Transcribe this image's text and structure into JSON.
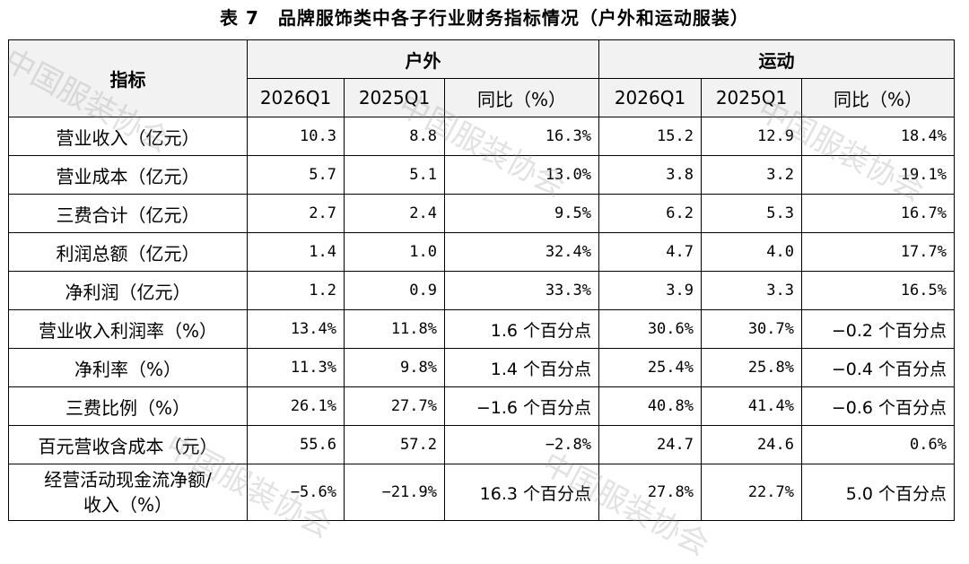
{
  "title": "表 7　品牌服饰类中各子行业财务指标情况（户外和运动服装）",
  "header": {
    "indicator": "指标",
    "groups": [
      "户外",
      "运动"
    ],
    "subcols": [
      "2026Q1",
      "2025Q1",
      "同比（%）",
      "2026Q1",
      "2025Q1",
      "同比（%）"
    ]
  },
  "rows": [
    {
      "label": "营业收入（亿元）",
      "cells": [
        "10.3",
        "8.8",
        "16.3%",
        "15.2",
        "12.9",
        "18.4%"
      ]
    },
    {
      "label": "营业成本（亿元）",
      "cells": [
        "5.7",
        "5.1",
        "13.0%",
        "3.8",
        "3.2",
        "19.1%"
      ]
    },
    {
      "label": "三费合计（亿元）",
      "cells": [
        "2.7",
        "2.4",
        "9.5%",
        "6.2",
        "5.3",
        "16.7%"
      ]
    },
    {
      "label": "利润总额（亿元）",
      "cells": [
        "1.4",
        "1.0",
        "32.4%",
        "4.7",
        "4.0",
        "17.7%"
      ]
    },
    {
      "label": "净利润（亿元）",
      "cells": [
        "1.2",
        "0.9",
        "33.3%",
        "3.9",
        "3.3",
        "16.5%"
      ]
    },
    {
      "label": "营业收入利润率（%）",
      "cells": [
        "13.4%",
        "11.8%",
        "1.6 个百分点",
        "30.6%",
        "30.7%",
        "−0.2 个百分点"
      ]
    },
    {
      "label": "净利率（%）",
      "cells": [
        "11.3%",
        "9.8%",
        "1.4 个百分点",
        "25.4%",
        "25.8%",
        "−0.4 个百分点"
      ]
    },
    {
      "label": "三费比例（%）",
      "cells": [
        "26.1%",
        "27.7%",
        "−1.6 个百分点",
        "40.8%",
        "41.4%",
        "−0.6 个百分点"
      ]
    },
    {
      "label": "百元营收含成本（元）",
      "cells": [
        "55.6",
        "57.2",
        "−2.8%",
        "24.7",
        "24.6",
        "0.6%"
      ]
    },
    {
      "label_line1": "经营活动现金流净额/",
      "label_line2": "收入（%）",
      "cells": [
        "−5.6%",
        "−21.9%",
        "16.3 个百分点",
        "27.8%",
        "22.7%",
        "5.0 个百分点"
      ]
    }
  ],
  "watermark": "中国服装协会"
}
